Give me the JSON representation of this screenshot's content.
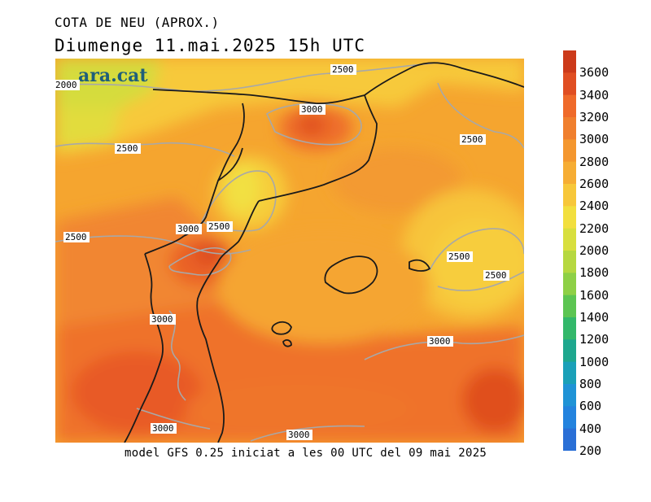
{
  "header": {
    "title": "COTA DE NEU (APROX.)",
    "subtitle": "Diumenge  11.mai.2025 15h UTC"
  },
  "footer": {
    "caption": "model GFS 0.25 iniciat a les 00 UTC del 09 mai 2025"
  },
  "brand": {
    "logo_text": "ara.cat",
    "logo_color": "#1f5f7a"
  },
  "map": {
    "contour_labels": [
      "2500",
      "2000",
      "3000",
      "2500",
      "2500",
      "2500",
      "3000",
      "2500",
      "2500",
      "2500",
      "3000",
      "3000",
      "3000",
      "3000"
    ],
    "colors": {
      "border": "#1a1a1a",
      "contour": "#a8a8a8"
    }
  },
  "legend": {
    "entries": [
      {
        "label": "3600",
        "color": "#cc3a1a"
      },
      {
        "label": "3400",
        "color": "#e04e22"
      },
      {
        "label": "3200",
        "color": "#ef6a2a"
      },
      {
        "label": "3000",
        "color": "#f07f2e"
      },
      {
        "label": "2800",
        "color": "#f4972f"
      },
      {
        "label": "2600",
        "color": "#f6ad34"
      },
      {
        "label": "2400",
        "color": "#f7c73a"
      },
      {
        "label": "2200",
        "color": "#f2df3e"
      },
      {
        "label": "2000",
        "color": "#d8df3e"
      },
      {
        "label": "1800",
        "color": "#b6d840"
      },
      {
        "label": "1600",
        "color": "#8ed046"
      },
      {
        "label": "1400",
        "color": "#5cc552"
      },
      {
        "label": "1200",
        "color": "#33b86a"
      },
      {
        "label": "1000",
        "color": "#1ea78e"
      },
      {
        "label": "800",
        "color": "#1aa0b8"
      },
      {
        "label": "600",
        "color": "#1f93d6"
      },
      {
        "label": "400",
        "color": "#2383de"
      },
      {
        "label": "200",
        "color": "#2a6fd6"
      }
    ]
  }
}
